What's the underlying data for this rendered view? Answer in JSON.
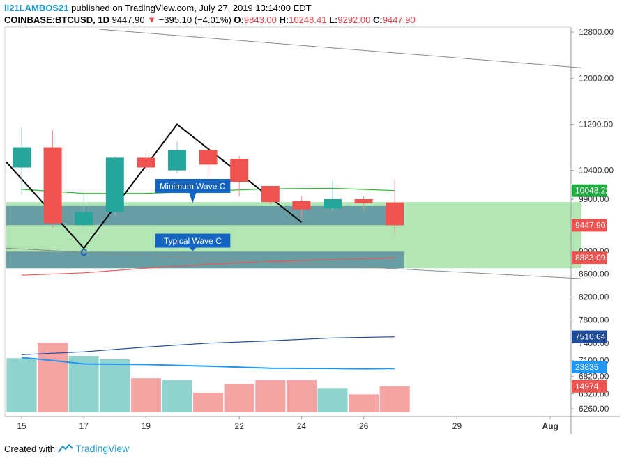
{
  "header": {
    "user": "ll21LAMBOS21",
    "published": "published on TradingView.com, July 27, 2019 13:14:00 EDT",
    "symbol": "COINBASE:BTCUSD, 1D",
    "last": "9447.90",
    "change_arrow": "▼",
    "change": "−395.10 (−4.01%)",
    "o_label": "O:",
    "o_value": "9843.00",
    "h_label": "H:",
    "h_value": "10248.41",
    "l_label": "L:",
    "l_value": "9292.00",
    "c_label": "C:",
    "c_value": "9447.90"
  },
  "footer": {
    "created_with": "Created with",
    "brand": "TradingView",
    "brand_icon": "tradingview-logo-icon"
  },
  "colors": {
    "up": "#26a69a",
    "down": "#ef5350",
    "vol_up": "#8fd3cc",
    "vol_down": "#f5a3a3",
    "zone_green": "#b3e6b5",
    "zone_blue": "#5b8fa0",
    "label_bg": "#1565c0",
    "ma_green": "#2eb82e",
    "ma_red": "#ef5350",
    "ma_navy": "#1e4b9a",
    "ma_blue": "#2196f3"
  },
  "chart_data": {
    "type": "candlestick",
    "x_ticks": [
      {
        "label": "15",
        "x": 0
      },
      {
        "label": "17",
        "x": 2
      },
      {
        "label": "19",
        "x": 4
      },
      {
        "label": "22",
        "x": 7
      },
      {
        "label": "24",
        "x": 9
      },
      {
        "label": "26",
        "x": 11
      },
      {
        "label": "29",
        "x": 14
      },
      {
        "label": "Aug",
        "x": 17
      }
    ],
    "price_axis": {
      "ticks": [
        "12800.00",
        "12000.00",
        "11200.00",
        "10400.00",
        "9900.00",
        "9000.00",
        "8600.00",
        "8200.00",
        "7800.00",
        "7400.00",
        "7100.00",
        "6820.00",
        "6520.00",
        "6260.00"
      ],
      "ylim": [
        6200,
        12850
      ]
    },
    "price_badges": [
      {
        "label": "10048.22",
        "value": 10048.22,
        "color": "#21a843"
      },
      {
        "label": "9447.90",
        "value": 9447.9,
        "color": "#ef5350"
      },
      {
        "label": "8883.09",
        "value": 8883.09,
        "color": "#ef5350"
      },
      {
        "label": "7510.64",
        "value": 7510.64,
        "color": "#1e4b9a"
      },
      {
        "label": "23835",
        "value": 6985,
        "color": "#2196f3"
      },
      {
        "label": "14974",
        "value": 6650,
        "color": "#ef5350"
      }
    ],
    "candles": [
      {
        "x": 0,
        "o": 10450,
        "h": 11150,
        "l": 9980,
        "c": 10800
      },
      {
        "x": 1,
        "o": 10800,
        "h": 11100,
        "l": 9400,
        "c": 9480
      },
      {
        "x": 2,
        "o": 9450,
        "h": 9990,
        "l": 9380,
        "c": 9680
      },
      {
        "x": 3,
        "o": 9680,
        "h": 10650,
        "l": 9620,
        "c": 10620
      },
      {
        "x": 4,
        "o": 10620,
        "h": 10700,
        "l": 10400,
        "c": 10450
      },
      {
        "x": 5,
        "o": 10400,
        "h": 10900,
        "l": 10350,
        "c": 10750
      },
      {
        "x": 6,
        "o": 10750,
        "h": 10800,
        "l": 10300,
        "c": 10500
      },
      {
        "x": 7,
        "o": 10600,
        "h": 10650,
        "l": 9950,
        "c": 10200
      },
      {
        "x": 8,
        "o": 10130,
        "h": 10130,
        "l": 9800,
        "c": 9850
      },
      {
        "x": 9,
        "o": 9870,
        "h": 9950,
        "l": 9580,
        "c": 9720
      },
      {
        "x": 10,
        "o": 9740,
        "h": 10210,
        "l": 9700,
        "c": 9900
      },
      {
        "x": 11,
        "o": 9900,
        "h": 9950,
        "l": 9700,
        "c": 9830
      },
      {
        "x": 12,
        "o": 9843,
        "h": 10248.41,
        "l": 9292,
        "c": 9447.9
      }
    ],
    "volume": {
      "scale_max": 7550,
      "scale_min": 6200,
      "bars": [
        {
          "x": 0,
          "v": 7140,
          "dir": "up"
        },
        {
          "x": 1,
          "v": 7410,
          "dir": "down"
        },
        {
          "x": 2,
          "v": 7180,
          "dir": "up"
        },
        {
          "x": 3,
          "v": 7120,
          "dir": "up"
        },
        {
          "x": 4,
          "v": 6790,
          "dir": "down"
        },
        {
          "x": 5,
          "v": 6760,
          "dir": "up"
        },
        {
          "x": 6,
          "v": 6540,
          "dir": "down"
        },
        {
          "x": 7,
          "v": 6690,
          "dir": "down"
        },
        {
          "x": 8,
          "v": 6760,
          "dir": "down"
        },
        {
          "x": 9,
          "v": 6760,
          "dir": "down"
        },
        {
          "x": 10,
          "v": 6620,
          "dir": "up"
        },
        {
          "x": 11,
          "v": 6510,
          "dir": "down"
        },
        {
          "x": 12,
          "v": 6650,
          "dir": "down"
        }
      ]
    },
    "ma_lines": [
      {
        "name": "ma-green",
        "color": "#2eb82e",
        "points": [
          [
            0,
            10070
          ],
          [
            2,
            10000
          ],
          [
            4,
            10000
          ],
          [
            6,
            10040
          ],
          [
            8,
            10080
          ],
          [
            10,
            10090
          ],
          [
            12,
            10048
          ]
        ]
      },
      {
        "name": "ma-red",
        "color": "#ef5350",
        "points": [
          [
            0,
            8580
          ],
          [
            2,
            8620
          ],
          [
            4,
            8700
          ],
          [
            6,
            8770
          ],
          [
            8,
            8820
          ],
          [
            10,
            8850
          ],
          [
            12,
            8883
          ]
        ]
      },
      {
        "name": "ma-navy",
        "color": "#1e4b9a",
        "points": [
          [
            0,
            7200
          ],
          [
            2,
            7250
          ],
          [
            4,
            7330
          ],
          [
            6,
            7400
          ],
          [
            8,
            7440
          ],
          [
            10,
            7490
          ],
          [
            12,
            7510
          ]
        ]
      },
      {
        "name": "ma-blue",
        "color": "#2196f3",
        "points": [
          [
            0,
            7150
          ],
          [
            1,
            7100
          ],
          [
            2,
            7040
          ],
          [
            4,
            7030
          ],
          [
            6,
            7000
          ],
          [
            8,
            6965
          ],
          [
            10,
            6960
          ],
          [
            11,
            6955
          ],
          [
            12,
            6960
          ]
        ]
      }
    ],
    "trend_lines": [
      {
        "name": "upper-trend-line",
        "color": "#8a8a8a",
        "width": 1,
        "points": [
          [
            2.5,
            12850
          ],
          [
            18,
            12180
          ]
        ]
      },
      {
        "name": "lower-trend-line",
        "color": "#8a8a8a",
        "width": 1,
        "points": [
          [
            -0.5,
            9050
          ],
          [
            18,
            8520
          ]
        ]
      },
      {
        "name": "wave-line",
        "color": "#000000",
        "width": 2,
        "points": [
          [
            -0.5,
            10550
          ],
          [
            2,
            9050
          ],
          [
            5,
            11200
          ],
          [
            9,
            9500
          ]
        ]
      }
    ],
    "zones": [
      {
        "name": "green-target-zone",
        "color": "#b3e6b5",
        "x0": -0.5,
        "x1": 18,
        "y0": 8700,
        "y1": 9850
      },
      {
        "name": "minimum-wave-c-zone",
        "color": "#5b8fa0",
        "x0": -0.5,
        "x1": 12.3,
        "y0": 9450,
        "y1": 9780
      },
      {
        "name": "typical-wave-c-zone",
        "color": "#5b8fa0",
        "x0": -0.5,
        "x1": 12.3,
        "y0": 8700,
        "y1": 8990
      }
    ],
    "annotations": [
      {
        "name": "minimum-wave-c-label",
        "text": "Minimum Wave C",
        "x": 5.5,
        "y": 10130,
        "pointer_y": 9830
      },
      {
        "name": "typical-wave-c-label",
        "text": "Typical Wave C",
        "x": 5.5,
        "y": 9180,
        "pointer_y": 9000
      },
      {
        "name": "wave-c-marker",
        "text": "C",
        "x": 2,
        "y": 8920
      }
    ]
  }
}
